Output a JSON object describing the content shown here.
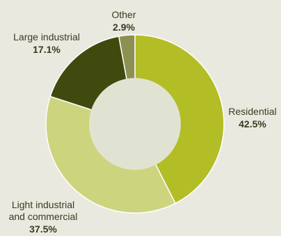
{
  "chart_data": {
    "type": "pie",
    "donut": true,
    "categories": [
      "Residential",
      "Light industrial and commercial",
      "Large industrial",
      "Other"
    ],
    "values": [
      42.5,
      37.5,
      17.1,
      2.9
    ],
    "value_labels": [
      "42.5%",
      "37.5%",
      "17.1%",
      "2.9%"
    ],
    "label_lines": [
      [
        "Residential"
      ],
      [
        "Light industrial",
        "and commercial"
      ],
      [
        "Large industrial"
      ],
      [
        "Other"
      ]
    ],
    "colors": [
      "#b3bd26",
      "#cdd47e",
      "#414a0e",
      "#8c9052"
    ],
    "hole_color": "#e1e3d2",
    "background": "#e9e9e0",
    "title": "",
    "legend": "none"
  }
}
